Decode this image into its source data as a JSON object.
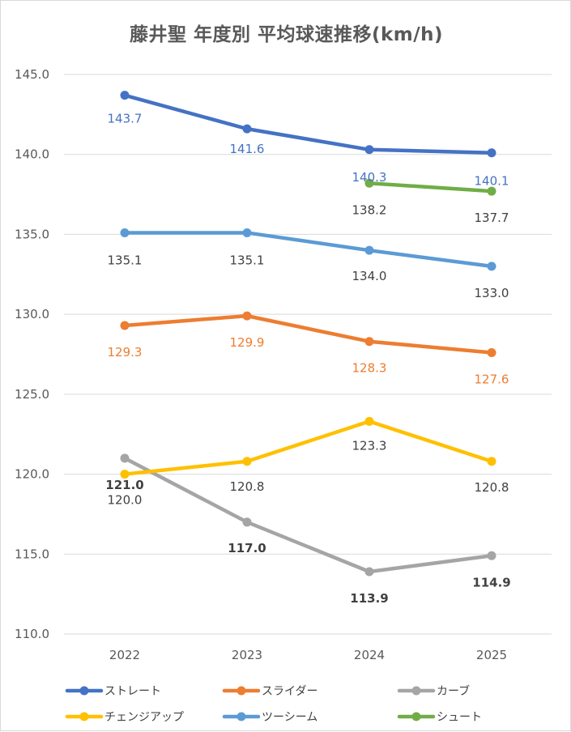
{
  "chart_data": {
    "type": "line",
    "title": "藤井聖 年度別 平均球速推移(km/h)",
    "categories": [
      "2022",
      "2023",
      "2024",
      "2025"
    ],
    "ylim": [
      110.0,
      145.0
    ],
    "ytick_step": 5.0,
    "yticks": [
      "145.0",
      "140.0",
      "135.0",
      "130.0",
      "125.0",
      "120.0",
      "115.0",
      "110.0"
    ],
    "grid": true,
    "legend_position": "bottom",
    "series": [
      {
        "name": "ストレート",
        "color": "#4472c4",
        "values": [
          143.7,
          141.6,
          140.3,
          140.1
        ],
        "labels": [
          "143.7",
          "141.6",
          "140.3",
          "140.1"
        ],
        "label_color": "#4472c4",
        "label_bold": false,
        "label_pos": "below"
      },
      {
        "name": "スライダー",
        "color": "#ed7d31",
        "values": [
          129.3,
          129.9,
          128.3,
          127.6
        ],
        "labels": [
          "129.3",
          "129.9",
          "128.3",
          "127.6"
        ],
        "label_color": "#ed7d31",
        "label_bold": false,
        "label_pos": "below"
      },
      {
        "name": "カーブ",
        "color": "#a5a5a5",
        "values": [
          121.0,
          117.0,
          113.9,
          114.9
        ],
        "labels": [
          "121.0",
          "117.0",
          "113.9",
          "114.9"
        ],
        "label_color": "#404040",
        "label_bold": true,
        "label_pos": "below"
      },
      {
        "name": "チェンジアップ",
        "color": "#ffc000",
        "values": [
          120.0,
          120.8,
          123.3,
          120.8
        ],
        "labels": [
          "120.0",
          "120.8",
          "123.3",
          "120.8"
        ],
        "label_color": "#404040",
        "label_bold": false,
        "label_pos": "below"
      },
      {
        "name": "ツーシーム",
        "color": "#5b9bd5",
        "values": [
          135.1,
          135.1,
          134.0,
          133.0
        ],
        "labels": [
          "135.1",
          "135.1",
          "134.0",
          "133.0"
        ],
        "label_color": "#404040",
        "label_bold": false,
        "label_pos": "below"
      },
      {
        "name": "シュート",
        "color": "#70ad47",
        "values": [
          null,
          null,
          138.2,
          137.7
        ],
        "labels": [
          null,
          null,
          "138.2",
          "137.7"
        ],
        "label_color": "#404040",
        "label_bold": false,
        "label_pos": "below"
      }
    ]
  }
}
